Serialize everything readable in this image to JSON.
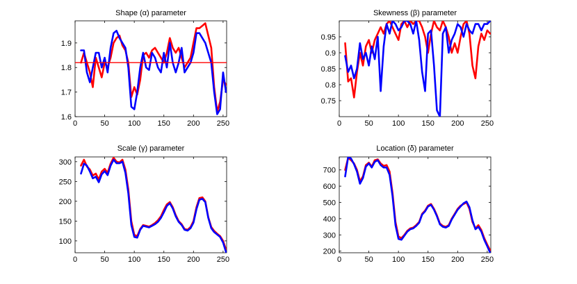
{
  "chart_data": [
    {
      "type": "line",
      "title": "Shape (α) parameter",
      "xlim": [
        0,
        256
      ],
      "ylim": [
        1.6,
        1.99
      ],
      "xticks": [
        0,
        50,
        100,
        150,
        200,
        250
      ],
      "yticks": [
        1.6,
        1.7,
        1.8,
        1.9
      ],
      "ytick_labels": [
        "1.6",
        "1.7",
        "1.8",
        "1.9"
      ],
      "hline": {
        "y": 1.82,
        "color": "#ff0000"
      },
      "series": [
        {
          "color": "#ff0000",
          "x": [
            10,
            15,
            20,
            25,
            30,
            35,
            40,
            45,
            50,
            55,
            60,
            65,
            70,
            75,
            80,
            85,
            90,
            95,
            100,
            105,
            110,
            115,
            120,
            125,
            130,
            135,
            140,
            145,
            150,
            155,
            160,
            165,
            170,
            175,
            180,
            185,
            190,
            195,
            200,
            205,
            210,
            215,
            220,
            225,
            230,
            235,
            240,
            245,
            250,
            255
          ],
          "y": [
            1.82,
            1.86,
            1.82,
            1.78,
            1.72,
            1.84,
            1.8,
            1.76,
            1.82,
            1.8,
            1.84,
            1.9,
            1.92,
            1.93,
            1.89,
            1.87,
            1.82,
            1.68,
            1.72,
            1.69,
            1.75,
            1.85,
            1.86,
            1.84,
            1.87,
            1.88,
            1.86,
            1.84,
            1.82,
            1.86,
            1.92,
            1.88,
            1.86,
            1.88,
            1.84,
            1.8,
            1.82,
            1.84,
            1.9,
            1.96,
            1.96,
            1.97,
            1.98,
            1.93,
            1.88,
            1.72,
            1.62,
            1.66,
            1.75,
            1.73
          ]
        },
        {
          "color": "#0000ff",
          "x": [
            10,
            15,
            20,
            25,
            30,
            35,
            40,
            45,
            50,
            55,
            60,
            65,
            70,
            75,
            80,
            85,
            90,
            95,
            100,
            105,
            110,
            115,
            120,
            125,
            130,
            135,
            140,
            145,
            150,
            155,
            160,
            165,
            170,
            175,
            180,
            185,
            190,
            195,
            200,
            205,
            210,
            215,
            220,
            225,
            230,
            235,
            240,
            245,
            250,
            255
          ],
          "y": [
            1.87,
            1.87,
            1.78,
            1.74,
            1.8,
            1.86,
            1.86,
            1.8,
            1.84,
            1.78,
            1.88,
            1.94,
            1.95,
            1.92,
            1.9,
            1.88,
            1.8,
            1.64,
            1.63,
            1.7,
            1.8,
            1.86,
            1.8,
            1.79,
            1.86,
            1.84,
            1.8,
            1.78,
            1.86,
            1.8,
            1.9,
            1.82,
            1.78,
            1.82,
            1.88,
            1.78,
            1.8,
            1.82,
            1.86,
            1.94,
            1.94,
            1.92,
            1.9,
            1.86,
            1.82,
            1.7,
            1.61,
            1.63,
            1.78,
            1.7
          ]
        }
      ]
    },
    {
      "type": "line",
      "title": "Skewness (β) parameter",
      "xlim": [
        0,
        256
      ],
      "ylim": [
        0.7,
        1.0
      ],
      "xticks": [
        0,
        50,
        100,
        150,
        200,
        250
      ],
      "yticks": [
        0.75,
        0.8,
        0.85,
        0.9,
        0.95
      ],
      "ytick_labels": [
        "0.75",
        "0.8",
        "0.85",
        "0.9",
        "0.95"
      ],
      "series": [
        {
          "color": "#ff0000",
          "x": [
            10,
            15,
            20,
            25,
            30,
            35,
            40,
            45,
            50,
            55,
            60,
            65,
            70,
            75,
            80,
            85,
            90,
            95,
            100,
            105,
            110,
            115,
            120,
            125,
            130,
            135,
            140,
            145,
            150,
            155,
            160,
            165,
            170,
            175,
            180,
            185,
            190,
            195,
            200,
            205,
            210,
            215,
            220,
            225,
            230,
            235,
            240,
            245,
            250,
            255
          ],
          "y": [
            0.93,
            0.81,
            0.82,
            0.76,
            0.84,
            0.9,
            0.86,
            0.92,
            0.94,
            0.9,
            0.94,
            0.96,
            0.98,
            0.96,
            0.99,
            1.0,
            0.98,
            0.96,
            0.94,
            0.99,
            1.0,
            0.98,
            1.0,
            0.99,
            1.0,
            1.0,
            0.98,
            0.95,
            0.9,
            0.96,
            1.0,
            0.98,
            0.97,
            1.0,
            0.98,
            0.95,
            0.9,
            0.93,
            0.9,
            0.95,
            0.99,
            1.0,
            0.96,
            0.86,
            0.82,
            0.92,
            0.96,
            0.94,
            0.97,
            0.96
          ]
        },
        {
          "color": "#0000ff",
          "x": [
            10,
            15,
            20,
            25,
            30,
            35,
            40,
            45,
            50,
            55,
            60,
            65,
            70,
            75,
            80,
            85,
            90,
            95,
            100,
            105,
            110,
            115,
            120,
            125,
            130,
            135,
            140,
            145,
            150,
            155,
            160,
            165,
            170,
            175,
            180,
            185,
            190,
            195,
            200,
            205,
            210,
            215,
            220,
            225,
            230,
            235,
            240,
            245,
            250,
            255
          ],
          "y": [
            0.89,
            0.84,
            0.86,
            0.82,
            0.85,
            0.93,
            0.88,
            0.9,
            0.86,
            0.92,
            0.88,
            0.95,
            0.78,
            0.92,
            0.99,
            0.96,
            1.0,
            0.99,
            0.97,
            0.98,
            1.0,
            1.0,
            0.99,
            0.96,
            1.0,
            0.94,
            0.84,
            0.78,
            0.96,
            0.97,
            0.86,
            0.72,
            0.7,
            0.96,
            0.98,
            0.9,
            0.94,
            0.96,
            0.99,
            0.98,
            0.95,
            0.99,
            0.97,
            0.96,
            0.99,
            0.99,
            0.97,
            0.99,
            0.99,
            1.0
          ]
        }
      ]
    },
    {
      "type": "line",
      "title": "Scale (γ) parameter",
      "xlim": [
        0,
        256
      ],
      "ylim": [
        70,
        312
      ],
      "xticks": [
        0,
        50,
        100,
        150,
        200,
        250
      ],
      "yticks": [
        100,
        150,
        200,
        250,
        300
      ],
      "ytick_labels": [
        "100",
        "150",
        "200",
        "250",
        "300"
      ],
      "series": [
        {
          "color": "#ff0000",
          "x": [
            10,
            15,
            20,
            25,
            30,
            35,
            40,
            45,
            50,
            55,
            60,
            65,
            70,
            75,
            80,
            85,
            90,
            95,
            100,
            105,
            110,
            115,
            120,
            125,
            130,
            135,
            140,
            145,
            150,
            155,
            160,
            165,
            170,
            175,
            180,
            185,
            190,
            195,
            200,
            205,
            210,
            215,
            220,
            225,
            230,
            235,
            240,
            245,
            250,
            255
          ],
          "y": [
            290,
            305,
            288,
            280,
            265,
            270,
            255,
            275,
            282,
            272,
            295,
            310,
            300,
            298,
            305,
            280,
            230,
            150,
            115,
            112,
            130,
            140,
            138,
            136,
            140,
            145,
            152,
            162,
            178,
            192,
            198,
            185,
            165,
            150,
            142,
            130,
            128,
            135,
            150,
            185,
            208,
            210,
            200,
            160,
            135,
            125,
            118,
            112,
            100,
            78
          ]
        },
        {
          "color": "#0000ff",
          "x": [
            10,
            15,
            20,
            25,
            30,
            35,
            40,
            45,
            50,
            55,
            60,
            65,
            70,
            75,
            80,
            85,
            90,
            95,
            100,
            105,
            110,
            115,
            120,
            125,
            130,
            135,
            140,
            145,
            150,
            155,
            160,
            165,
            170,
            175,
            180,
            185,
            190,
            195,
            200,
            205,
            210,
            215,
            220,
            225,
            230,
            235,
            240,
            245,
            250,
            255
          ],
          "y": [
            270,
            295,
            290,
            275,
            258,
            262,
            248,
            268,
            276,
            266,
            290,
            305,
            296,
            296,
            300,
            272,
            220,
            140,
            110,
            108,
            128,
            138,
            136,
            134,
            138,
            142,
            148,
            158,
            172,
            188,
            195,
            182,
            162,
            148,
            140,
            128,
            126,
            132,
            146,
            180,
            204,
            206,
            198,
            158,
            132,
            122,
            116,
            110,
            96,
            72
          ]
        }
      ]
    },
    {
      "type": "line",
      "title": "Location (δ) parameter",
      "xlim": [
        0,
        256
      ],
      "ylim": [
        190,
        780
      ],
      "xticks": [
        0,
        50,
        100,
        150,
        200,
        250
      ],
      "yticks": [
        200,
        300,
        400,
        500,
        600,
        700
      ],
      "ytick_labels": [
        "200",
        "300",
        "400",
        "500",
        "600",
        "700"
      ],
      "series": [
        {
          "color": "#ff0000",
          "x": [
            10,
            15,
            20,
            25,
            30,
            35,
            40,
            45,
            50,
            55,
            60,
            65,
            70,
            75,
            80,
            85,
            90,
            95,
            100,
            105,
            110,
            115,
            120,
            125,
            130,
            135,
            140,
            145,
            150,
            155,
            160,
            165,
            170,
            175,
            180,
            185,
            190,
            195,
            200,
            205,
            210,
            215,
            220,
            225,
            230,
            235,
            240,
            245,
            250,
            255
          ],
          "y": [
            700,
            775,
            760,
            740,
            700,
            630,
            660,
            730,
            745,
            720,
            760,
            765,
            740,
            725,
            730,
            690,
            560,
            380,
            290,
            280,
            300,
            325,
            340,
            345,
            360,
            380,
            430,
            450,
            480,
            490,
            460,
            420,
            370,
            355,
            350,
            360,
            400,
            430,
            460,
            480,
            490,
            500,
            460,
            380,
            340,
            360,
            330,
            280,
            240,
            205
          ]
        },
        {
          "color": "#0000ff",
          "x": [
            10,
            15,
            20,
            25,
            30,
            35,
            40,
            45,
            50,
            55,
            60,
            65,
            70,
            75,
            80,
            85,
            90,
            95,
            100,
            105,
            110,
            115,
            120,
            125,
            130,
            135,
            140,
            145,
            150,
            155,
            160,
            165,
            170,
            175,
            180,
            185,
            190,
            195,
            200,
            205,
            210,
            215,
            220,
            225,
            230,
            235,
            240,
            245,
            250,
            255
          ],
          "y": [
            660,
            780,
            770,
            735,
            690,
            615,
            650,
            720,
            740,
            715,
            750,
            760,
            730,
            715,
            715,
            670,
            540,
            360,
            275,
            270,
            295,
            320,
            335,
            340,
            355,
            375,
            425,
            445,
            475,
            485,
            455,
            415,
            365,
            350,
            345,
            355,
            395,
            425,
            455,
            475,
            495,
            505,
            470,
            390,
            335,
            350,
            320,
            270,
            230,
            190
          ]
        }
      ]
    }
  ]
}
